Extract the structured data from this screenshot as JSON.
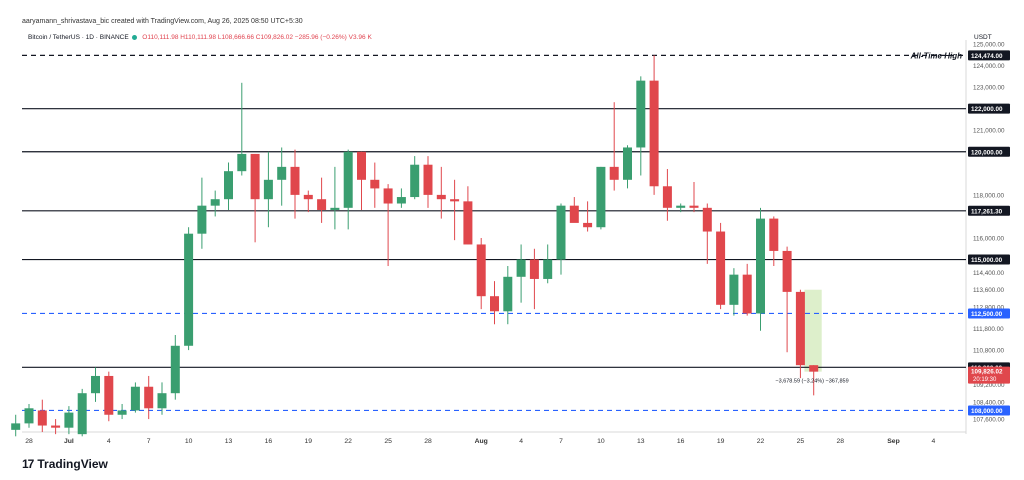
{
  "credit": "aaryamann_shrivastava_bic created with TradingView.com, Aug 26, 2025 08:50 UTC+5:30",
  "header": {
    "symbol": "Bitcoin / TetherUS · 1D · BINANCE",
    "ohlc": "O110,111.98 H110,111.98 L108,666.66 C109,826.02 −285.96 (−0.26%) V3.96 K",
    "unit": "USDT"
  },
  "logo": {
    "mark": "17",
    "text": "TradingView"
  },
  "colors": {
    "up": "#3a9e70",
    "down": "#e0474c",
    "dashed_level": "#2962ff",
    "label_bg": "#131722",
    "current_bg": "#e0474c",
    "blue_label_bg": "#2962ff"
  },
  "chart_data": {
    "type": "candlestick",
    "y_axis_ticks": [
      "125,000.00",
      "124,000.00",
      "123,000.00",
      "121,000.00",
      "118,000.00",
      "116,000.00",
      "114,400.00",
      "113,600.00",
      "112,800.00",
      "111,800.00",
      "110,800.00",
      "109,200.00",
      "108,400.00",
      "107,600.00"
    ],
    "y_range": [
      107000,
      125000
    ],
    "x_axis_ticks": [
      {
        "label": "28",
        "date": "Jun 28"
      },
      {
        "label": "Jul",
        "date": "Jul 1"
      },
      {
        "label": "4",
        "date": "Jul 4"
      },
      {
        "label": "7",
        "date": "Jul 7"
      },
      {
        "label": "10",
        "date": "Jul 10"
      },
      {
        "label": "13",
        "date": "Jul 13"
      },
      {
        "label": "16",
        "date": "Jul 16"
      },
      {
        "label": "19",
        "date": "Jul 19"
      },
      {
        "label": "22",
        "date": "Jul 22"
      },
      {
        "label": "25",
        "date": "Jul 25"
      },
      {
        "label": "28",
        "date": "Jul 28"
      },
      {
        "label": "Aug",
        "date": "Aug 1"
      },
      {
        "label": "4",
        "date": "Aug 4"
      },
      {
        "label": "7",
        "date": "Aug 7"
      },
      {
        "label": "10",
        "date": "Aug 10"
      },
      {
        "label": "13",
        "date": "Aug 13"
      },
      {
        "label": "16",
        "date": "Aug 16"
      },
      {
        "label": "19",
        "date": "Aug 19"
      },
      {
        "label": "22",
        "date": "Aug 22"
      },
      {
        "label": "25",
        "date": "Aug 25"
      },
      {
        "label": "28",
        "date": "Aug 28"
      },
      {
        "label": "Sep",
        "date": "Sep 1"
      },
      {
        "label": "4",
        "date": "Sep 4"
      }
    ],
    "horizontal_levels": [
      {
        "value": 124474,
        "label": "124,474.00",
        "style": "dashed-black",
        "annotation": "All-Time High"
      },
      {
        "value": 122000,
        "label": "122,000.00",
        "style": "solid"
      },
      {
        "value": 120000,
        "label": "120,000.00",
        "style": "solid"
      },
      {
        "value": 117261.3,
        "label": "117,261.30",
        "style": "solid"
      },
      {
        "value": 115000,
        "label": "115,000.00",
        "style": "solid"
      },
      {
        "value": 112500,
        "label": "112,500.00",
        "style": "dashed-blue"
      },
      {
        "value": 110000,
        "label": "110,000.00",
        "style": "solid"
      },
      {
        "value": 108000,
        "label": "108,000.00",
        "style": "dashed-blue"
      }
    ],
    "current_price": {
      "value": 109826.02,
      "label": "109,826.02",
      "countdown": "20:19:30"
    },
    "measure_label": "−3,678.59 (−3.24%) −367,859",
    "candles": [
      {
        "date": "Jun 27",
        "o": 107100,
        "h": 107800,
        "l": 106800,
        "c": 107400
      },
      {
        "date": "Jun 28",
        "o": 107400,
        "h": 108300,
        "l": 107200,
        "c": 108100
      },
      {
        "date": "Jun 29",
        "o": 108000,
        "h": 108500,
        "l": 107000,
        "c": 107300
      },
      {
        "date": "Jun 30",
        "o": 107300,
        "h": 107600,
        "l": 106900,
        "c": 107200
      },
      {
        "date": "Jul 1",
        "o": 107200,
        "h": 108200,
        "l": 106900,
        "c": 107900
      },
      {
        "date": "Jul 2",
        "o": 106900,
        "h": 109000,
        "l": 106800,
        "c": 108800
      },
      {
        "date": "Jul 3",
        "o": 108800,
        "h": 110000,
        "l": 108400,
        "c": 109600
      },
      {
        "date": "Jul 4",
        "o": 109600,
        "h": 109800,
        "l": 107500,
        "c": 107800
      },
      {
        "date": "Jul 5",
        "o": 107800,
        "h": 108300,
        "l": 107600,
        "c": 108000
      },
      {
        "date": "Jul 6",
        "o": 108000,
        "h": 109300,
        "l": 107900,
        "c": 109100
      },
      {
        "date": "Jul 7",
        "o": 109100,
        "h": 109600,
        "l": 107600,
        "c": 108100
      },
      {
        "date": "Jul 8",
        "o": 108100,
        "h": 109300,
        "l": 107800,
        "c": 108800
      },
      {
        "date": "Jul 9",
        "o": 108800,
        "h": 111500,
        "l": 108500,
        "c": 111000
      },
      {
        "date": "Jul 10",
        "o": 111000,
        "h": 116500,
        "l": 110800,
        "c": 116200
      },
      {
        "date": "Jul 11",
        "o": 116200,
        "h": 118800,
        "l": 115500,
        "c": 117500
      },
      {
        "date": "Jul 12",
        "o": 117500,
        "h": 118200,
        "l": 117000,
        "c": 117800
      },
      {
        "date": "Jul 13",
        "o": 117800,
        "h": 119500,
        "l": 117300,
        "c": 119100
      },
      {
        "date": "Jul 14",
        "o": 119100,
        "h": 123200,
        "l": 118900,
        "c": 119900
      },
      {
        "date": "Jul 15",
        "o": 119900,
        "h": 119900,
        "l": 115800,
        "c": 117800
      },
      {
        "date": "Jul 16",
        "o": 117800,
        "h": 120000,
        "l": 116500,
        "c": 118700
      },
      {
        "date": "Jul 17",
        "o": 118700,
        "h": 120200,
        "l": 117500,
        "c": 119300
      },
      {
        "date": "Jul 18",
        "o": 119300,
        "h": 120100,
        "l": 116900,
        "c": 118000
      },
      {
        "date": "Jul 19",
        "o": 118000,
        "h": 118200,
        "l": 117200,
        "c": 117800
      },
      {
        "date": "Jul 20",
        "o": 117800,
        "h": 118800,
        "l": 116700,
        "c": 117300
      },
      {
        "date": "Jul 21",
        "o": 117300,
        "h": 119300,
        "l": 116400,
        "c": 117400
      },
      {
        "date": "Jul 22",
        "o": 117400,
        "h": 120100,
        "l": 116400,
        "c": 120000
      },
      {
        "date": "Jul 23",
        "o": 120000,
        "h": 120000,
        "l": 117300,
        "c": 118700
      },
      {
        "date": "Jul 24",
        "o": 118700,
        "h": 119500,
        "l": 117400,
        "c": 118300
      },
      {
        "date": "Jul 25",
        "o": 118300,
        "h": 118500,
        "l": 114700,
        "c": 117600
      },
      {
        "date": "Jul 26",
        "o": 117600,
        "h": 118300,
        "l": 117400,
        "c": 117900
      },
      {
        "date": "Jul 27",
        "o": 117900,
        "h": 119800,
        "l": 117800,
        "c": 119400
      },
      {
        "date": "Jul 28",
        "o": 119400,
        "h": 119800,
        "l": 117400,
        "c": 118000
      },
      {
        "date": "Jul 29",
        "o": 118000,
        "h": 119300,
        "l": 116900,
        "c": 117800
      },
      {
        "date": "Jul 30",
        "o": 117800,
        "h": 118700,
        "l": 115900,
        "c": 117700
      },
      {
        "date": "Jul 31",
        "o": 117700,
        "h": 118400,
        "l": 115700,
        "c": 115700
      },
      {
        "date": "Aug 1",
        "o": 115700,
        "h": 116000,
        "l": 112700,
        "c": 113300
      },
      {
        "date": "Aug 2",
        "o": 113300,
        "h": 114000,
        "l": 112000,
        "c": 112600
      },
      {
        "date": "Aug 3",
        "o": 112600,
        "h": 114700,
        "l": 112000,
        "c": 114200
      },
      {
        "date": "Aug 4",
        "o": 114200,
        "h": 115700,
        "l": 113000,
        "c": 115000
      },
      {
        "date": "Aug 5",
        "o": 115000,
        "h": 115500,
        "l": 112700,
        "c": 114100
      },
      {
        "date": "Aug 6",
        "o": 114100,
        "h": 115700,
        "l": 113900,
        "c": 115000
      },
      {
        "date": "Aug 7",
        "o": 115000,
        "h": 117600,
        "l": 114300,
        "c": 117500
      },
      {
        "date": "Aug 8",
        "o": 117500,
        "h": 117900,
        "l": 116800,
        "c": 116700
      },
      {
        "date": "Aug 9",
        "o": 116700,
        "h": 117700,
        "l": 116300,
        "c": 116500
      },
      {
        "date": "Aug 10",
        "o": 116500,
        "h": 119300,
        "l": 116400,
        "c": 119300
      },
      {
        "date": "Aug 11",
        "o": 119300,
        "h": 122300,
        "l": 118200,
        "c": 118700
      },
      {
        "date": "Aug 12",
        "o": 118700,
        "h": 120300,
        "l": 118300,
        "c": 120200
      },
      {
        "date": "Aug 13",
        "o": 120200,
        "h": 123500,
        "l": 118900,
        "c": 123300
      },
      {
        "date": "Aug 14",
        "o": 123300,
        "h": 124474,
        "l": 118000,
        "c": 118400
      },
      {
        "date": "Aug 15",
        "o": 118400,
        "h": 119200,
        "l": 116800,
        "c": 117400
      },
      {
        "date": "Aug 16",
        "o": 117400,
        "h": 117600,
        "l": 117200,
        "c": 117500
      },
      {
        "date": "Aug 17",
        "o": 117500,
        "h": 118600,
        "l": 117200,
        "c": 117400
      },
      {
        "date": "Aug 18",
        "o": 117400,
        "h": 117600,
        "l": 114800,
        "c": 116300
      },
      {
        "date": "Aug 19",
        "o": 116300,
        "h": 116700,
        "l": 112700,
        "c": 112900
      },
      {
        "date": "Aug 20",
        "o": 112900,
        "h": 114600,
        "l": 112400,
        "c": 114300
      },
      {
        "date": "Aug 21",
        "o": 114300,
        "h": 114800,
        "l": 112400,
        "c": 112500
      },
      {
        "date": "Aug 22",
        "o": 112500,
        "h": 117400,
        "l": 111700,
        "c": 116900
      },
      {
        "date": "Aug 23",
        "o": 116900,
        "h": 117000,
        "l": 114700,
        "c": 115400
      },
      {
        "date": "Aug 24",
        "o": 115400,
        "h": 115600,
        "l": 110700,
        "c": 113500
      },
      {
        "date": "Aug 25",
        "o": 113500,
        "h": 113600,
        "l": 109500,
        "c": 110100
      },
      {
        "date": "Aug 26",
        "o": 110100,
        "h": 110100,
        "l": 108700,
        "c": 109800
      }
    ],
    "projection_box": {
      "from_date": "Aug 25",
      "to_date": "Aug 26",
      "top": 113600,
      "bottom": 109800
    }
  }
}
